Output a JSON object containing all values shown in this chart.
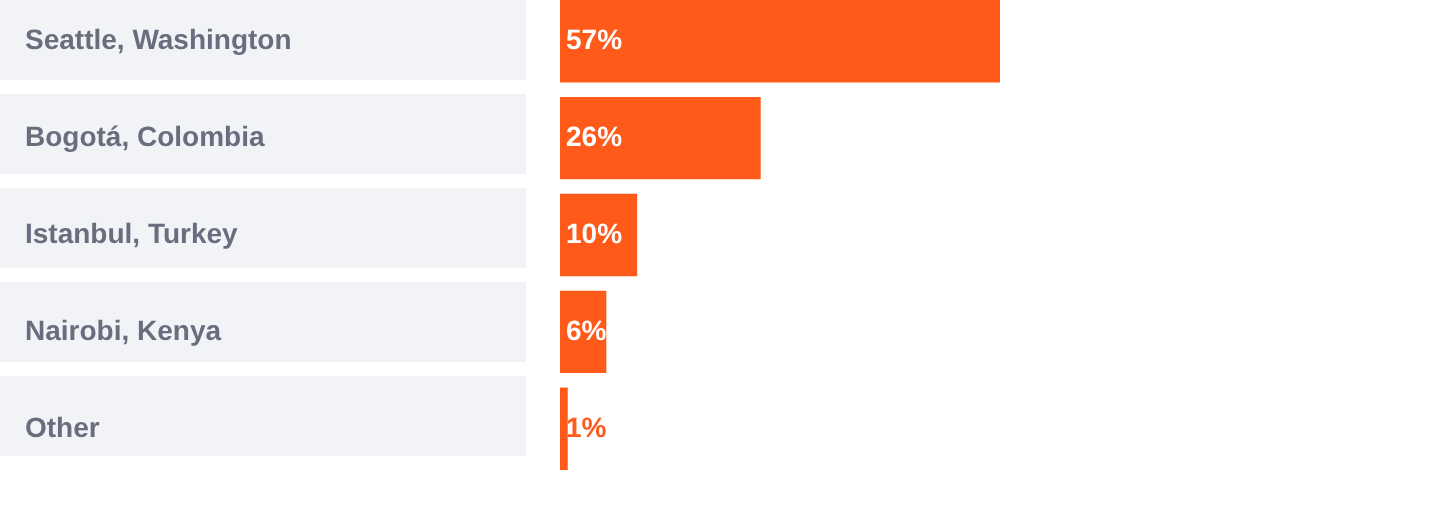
{
  "chart_data": {
    "type": "bar",
    "orientation": "horizontal",
    "categories": [
      "Seattle, Washington",
      "Bogotá, Colombia",
      "Istanbul, Turkey",
      "Nairobi, Kenya",
      "Other"
    ],
    "values": [
      57,
      26,
      10,
      6,
      1
    ],
    "value_labels": [
      "57%",
      "26%",
      "10%",
      "6%",
      "1%"
    ],
    "color": "#ff5a1a"
  }
}
